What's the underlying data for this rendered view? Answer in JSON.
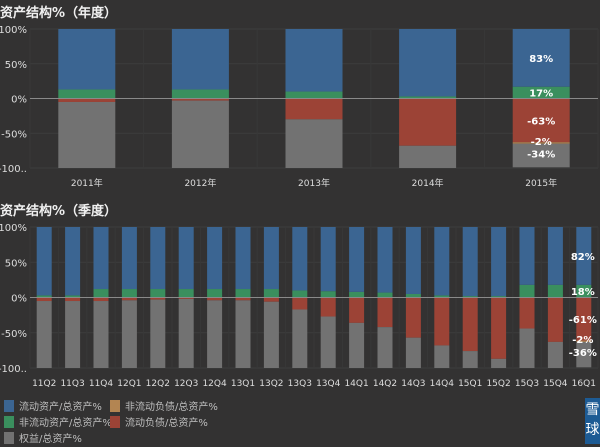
{
  "chart_data": [
    {
      "type": "bar",
      "stacked": true,
      "title": "资产结构%（年度）",
      "xlabel": "",
      "ylabel": "",
      "ylim": [
        -100,
        100
      ],
      "yticks": [
        "100%",
        "50%",
        "0%",
        "-50%",
        "-100.."
      ],
      "grid": true,
      "categories": [
        "2011年",
        "2012年",
        "2013年",
        "2014年",
        "2015年"
      ],
      "series": [
        {
          "name": "流动资产/总资产%",
          "color": "#3b6592",
          "values": [
            87,
            87,
            90,
            97,
            83
          ]
        },
        {
          "name": "非流动资产/总资产%",
          "color": "#3a8f5e",
          "values": [
            13,
            13,
            10,
            3,
            17
          ]
        },
        {
          "name": "流动负债/总资产%",
          "color": "#9c4336",
          "values": [
            -5,
            -3,
            -30,
            -68,
            -63
          ]
        },
        {
          "name": "非流动负债/总资产%",
          "color": "#b38552",
          "values": [
            0,
            0,
            0,
            0,
            -2
          ]
        },
        {
          "name": "权益/总资产%",
          "color": "#727272",
          "values": [
            -95,
            -97,
            -70,
            -32,
            -34
          ]
        }
      ],
      "data_labels": {
        "category": "2015年",
        "labels": [
          "83%",
          "17%",
          "-63%",
          "-2%",
          "-34%"
        ]
      }
    },
    {
      "type": "bar",
      "stacked": true,
      "title": "资产结构%（季度）",
      "xlabel": "",
      "ylabel": "",
      "ylim": [
        -100,
        100
      ],
      "yticks": [
        "100%",
        "50%",
        "0%",
        "-50%",
        "-100.."
      ],
      "grid": true,
      "categories": [
        "11Q2",
        "11Q3",
        "11Q4",
        "12Q1",
        "12Q2",
        "12Q3",
        "12Q4",
        "13Q1",
        "13Q2",
        "13Q3",
        "13Q4",
        "14Q1",
        "14Q2",
        "14Q3",
        "14Q4",
        "15Q1",
        "15Q2",
        "15Q3",
        "15Q4",
        "16Q1"
      ],
      "series": [
        {
          "name": "流动资产/总资产%",
          "color": "#3b6592",
          "values": [
            97,
            97,
            88,
            88,
            88,
            88,
            88,
            88,
            88,
            90,
            91,
            92,
            93,
            95,
            97,
            98,
            98,
            82,
            82,
            82
          ]
        },
        {
          "name": "非流动资产/总资产%",
          "color": "#3a8f5e",
          "values": [
            3,
            3,
            12,
            12,
            12,
            12,
            12,
            12,
            12,
            10,
            9,
            8,
            7,
            5,
            3,
            2,
            2,
            18,
            18,
            18
          ]
        },
        {
          "name": "流动负债/总资产%",
          "color": "#9c4336",
          "values": [
            -5,
            -5,
            -5,
            -4,
            -3,
            -2,
            -4,
            -4,
            -6,
            -17,
            -27,
            -36,
            -42,
            -57,
            -68,
            -76,
            -87,
            -44,
            -63,
            -61
          ]
        },
        {
          "name": "非流动负债/总资产%",
          "color": "#b38552",
          "values": [
            0,
            0,
            0,
            0,
            0,
            0,
            0,
            0,
            0,
            0,
            0,
            0,
            0,
            0,
            0,
            0,
            0,
            0,
            0,
            -2
          ]
        },
        {
          "name": "权益/总资产%",
          "color": "#727272",
          "values": [
            -95,
            -95,
            -95,
            -96,
            -97,
            -98,
            -96,
            -96,
            -94,
            -83,
            -73,
            -64,
            -58,
            -43,
            -32,
            -24,
            -13,
            -56,
            -37,
            -36
          ]
        }
      ],
      "data_labels": {
        "category": "16Q1",
        "labels": [
          "82%",
          "18%",
          "-61%",
          "-2%",
          "-36%"
        ]
      }
    }
  ],
  "legend": {
    "placement": "bottom-left",
    "items": [
      {
        "label": "流动资产/总资产%",
        "color": "#3b6592"
      },
      {
        "label": "非流动负债/总资产%",
        "color": "#b38552"
      },
      {
        "label": "非流动资产/总资产%",
        "color": "#3a8f5e"
      },
      {
        "label": "流动负债/总资产%",
        "color": "#9c4336"
      },
      {
        "label": "权益/总资产%",
        "color": "#727272"
      }
    ]
  },
  "logo": {
    "text": "雪球"
  }
}
